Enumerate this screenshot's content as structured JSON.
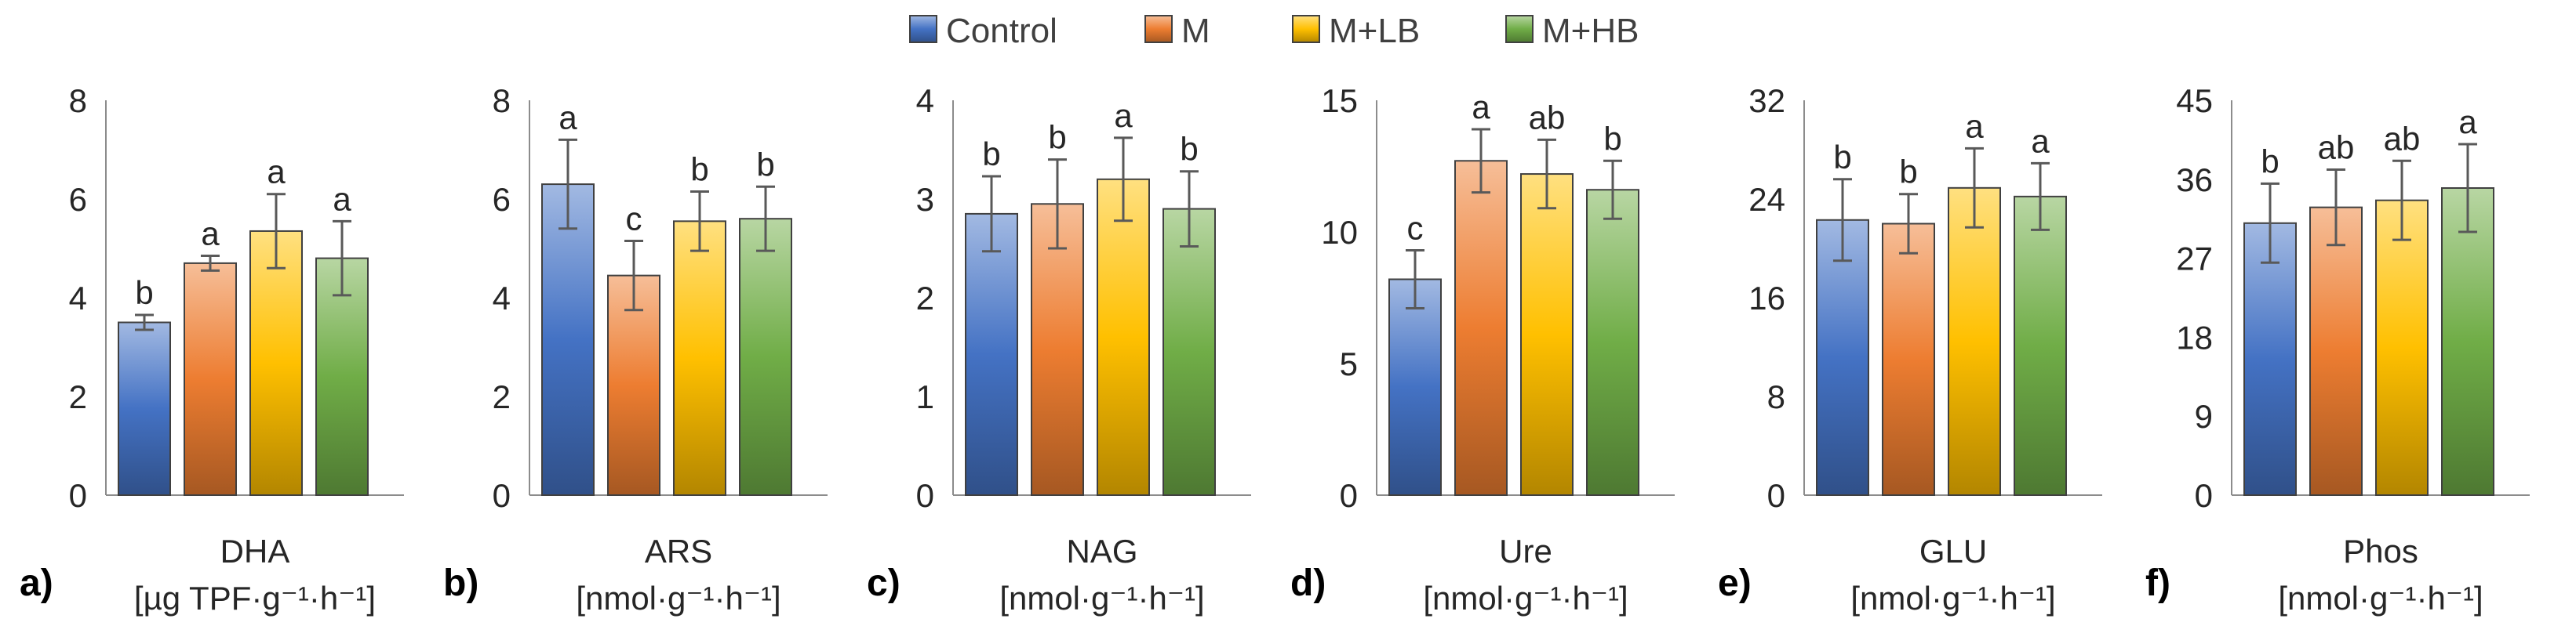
{
  "legend": [
    {
      "name": "Control",
      "color": "#4472c4"
    },
    {
      "name": "M",
      "color": "#ed7d31"
    },
    {
      "name": "M+LB",
      "color": "#ffc000"
    },
    {
      "name": "M+HB",
      "color": "#70ad47"
    }
  ],
  "chart_data": [
    {
      "type": "bar",
      "panel": "a)",
      "xlabel": "DHA",
      "unit": "[µg TPF·g⁻¹·h⁻¹]",
      "categories": [
        "Control",
        "M",
        "M+LB",
        "M+HB"
      ],
      "values": [
        3.5,
        4.7,
        5.35,
        4.8
      ],
      "errors": [
        0.15,
        0.15,
        0.75,
        0.75
      ],
      "letters": [
        "b",
        "a",
        "a",
        "a"
      ],
      "ylim": [
        0,
        8
      ],
      "yticks": [
        "0",
        "2",
        "4",
        "6",
        "8"
      ],
      "grid": false
    },
    {
      "type": "bar",
      "panel": "b)",
      "xlabel": "ARS",
      "unit": "[nmol·g⁻¹·h⁻¹]",
      "categories": [
        "Control",
        "M",
        "M+LB",
        "M+HB"
      ],
      "values": [
        6.3,
        4.45,
        5.55,
        5.6
      ],
      "errors": [
        0.9,
        0.7,
        0.6,
        0.65
      ],
      "letters": [
        "a",
        "c",
        "b",
        "b"
      ],
      "ylim": [
        0,
        8
      ],
      "yticks": [
        "0",
        "2",
        "4",
        "6",
        "8"
      ],
      "grid": false
    },
    {
      "type": "bar",
      "panel": "c)",
      "xlabel": "NAG",
      "unit": "[nmol·g⁻¹·h⁻¹]",
      "categories": [
        "Control",
        "M",
        "M+LB",
        "M+HB"
      ],
      "values": [
        2.85,
        2.95,
        3.2,
        2.9
      ],
      "errors": [
        0.38,
        0.45,
        0.42,
        0.38
      ],
      "letters": [
        "b",
        "b",
        "a",
        "b"
      ],
      "ylim": [
        0,
        4
      ],
      "yticks": [
        "0",
        "1",
        "2",
        "3",
        "4"
      ],
      "grid": false
    },
    {
      "type": "bar",
      "panel": "d)",
      "xlabel": "Ure",
      "unit": "[nmol·g⁻¹·h⁻¹]",
      "categories": [
        "Control",
        "M",
        "M+LB",
        "M+HB"
      ],
      "values": [
        8.2,
        12.7,
        12.2,
        11.6
      ],
      "errors": [
        1.1,
        1.2,
        1.3,
        1.1
      ],
      "letters": [
        "c",
        "a",
        "ab",
        "b"
      ],
      "ylim": [
        0,
        15
      ],
      "yticks": [
        "0",
        "5",
        "10",
        "15"
      ],
      "grid": false
    },
    {
      "type": "bar",
      "panel": "e)",
      "xlabel": "GLU",
      "unit": "[nmol·g⁻¹·h⁻¹]",
      "categories": [
        "Control",
        "M",
        "M+LB",
        "M+HB"
      ],
      "values": [
        22.3,
        22.0,
        24.9,
        24.2
      ],
      "errors": [
        3.3,
        2.4,
        3.2,
        2.7
      ],
      "letters": [
        "b",
        "b",
        "a",
        "a"
      ],
      "ylim": [
        0,
        32
      ],
      "yticks": [
        "0",
        "8",
        "16",
        "24",
        "32"
      ],
      "grid": false
    },
    {
      "type": "bar",
      "panel": "f)",
      "xlabel": "Phos",
      "unit": "[nmol·g⁻¹·h⁻¹]",
      "categories": [
        "Control",
        "M",
        "M+LB",
        "M+HB"
      ],
      "values": [
        31.0,
        32.8,
        33.6,
        35.0
      ],
      "errors": [
        4.5,
        4.3,
        4.5,
        5.0
      ],
      "letters": [
        "b",
        "ab",
        "ab",
        "a"
      ],
      "ylim": [
        0,
        45
      ],
      "yticks": [
        "0",
        "9",
        "18",
        "27",
        "36",
        "45"
      ],
      "grid": false
    }
  ]
}
